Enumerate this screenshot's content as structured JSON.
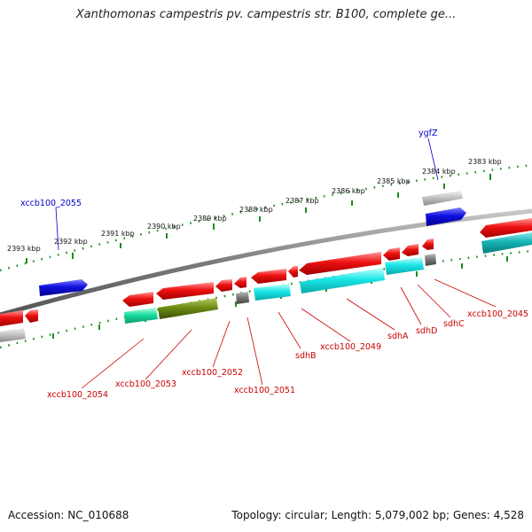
{
  "title": "Xanthomonas campestris pv. campestris str. B100, complete ge...",
  "ticks": [
    {
      "label": "2393 kbp"
    },
    {
      "label": "2392 kbp"
    },
    {
      "label": "2391 kbp"
    },
    {
      "label": "2390 kbp"
    },
    {
      "label": "2389 kbp"
    },
    {
      "label": "2388 kbp"
    },
    {
      "label": "2387 kbp"
    },
    {
      "label": "2386 kbp"
    },
    {
      "label": "2385 kbp"
    },
    {
      "label": "2384 kbp"
    },
    {
      "label": "2383 kbp"
    }
  ],
  "forward_labels": [
    {
      "label": "xccb100_2055"
    },
    {
      "label": "ygfZ"
    }
  ],
  "reverse_labels": [
    {
      "label": "xccb100_2054"
    },
    {
      "label": "xccb100_2053"
    },
    {
      "label": "xccb100_2052"
    },
    {
      "label": "xccb100_2051"
    },
    {
      "label": "sdhB"
    },
    {
      "label": "xccb100_2049"
    },
    {
      "label": "sdhA"
    },
    {
      "label": "sdhD"
    },
    {
      "label": "sdhC"
    },
    {
      "label": "xccb100_2045"
    }
  ],
  "footer": {
    "accession": "Accession: NC_010688",
    "summary": "Topology: circular; Length: 5,079,002 bp; Genes: 4,528"
  },
  "colors": {
    "cds_red": "#e01010",
    "cds_blue": "#1010e0",
    "cds_cyan": "#19e6e6",
    "cds_teal": "#14b4b4",
    "cds_green": "#19dca0",
    "cds_olive": "#6e8c14",
    "cds_gray": "#7a7a7a",
    "backbone": "#808080",
    "tick_green": "#1e8c1e",
    "label_red": "#cc0000",
    "label_blue": "#0000cc"
  }
}
